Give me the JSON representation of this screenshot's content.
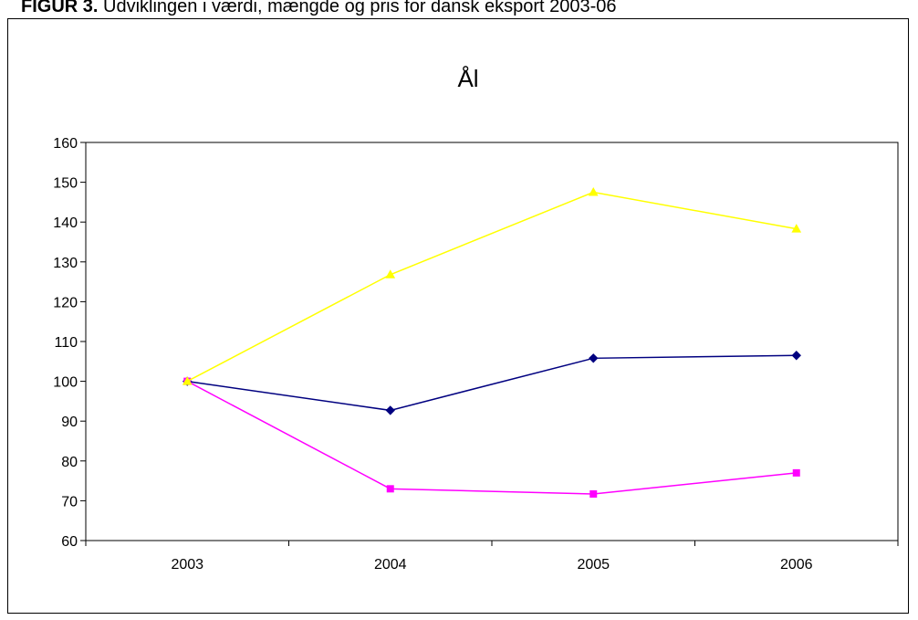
{
  "caption": {
    "prefix": "FIGUR 3.",
    "text": " Udviklingen i værdi, mængde og pris for dansk eksport 2003-06"
  },
  "chart_data": {
    "type": "line",
    "title": "Ål",
    "xlabel": "",
    "ylabel": "",
    "categories": [
      "2003",
      "2004",
      "2005",
      "2006"
    ],
    "ylim": [
      60,
      160
    ],
    "yticks": [
      60,
      70,
      80,
      90,
      100,
      110,
      120,
      130,
      140,
      150,
      160
    ],
    "grid": false,
    "legend": "none",
    "series": [
      {
        "color": "#000080",
        "marker": "diamond",
        "values": [
          100,
          92.7,
          105.8,
          106.5
        ]
      },
      {
        "color": "#FF00FF",
        "marker": "square",
        "values": [
          100,
          73,
          71.7,
          77
        ]
      },
      {
        "color": "#FFFF00",
        "marker": "triangle",
        "values": [
          100,
          126.8,
          147.5,
          138.3
        ]
      }
    ]
  }
}
